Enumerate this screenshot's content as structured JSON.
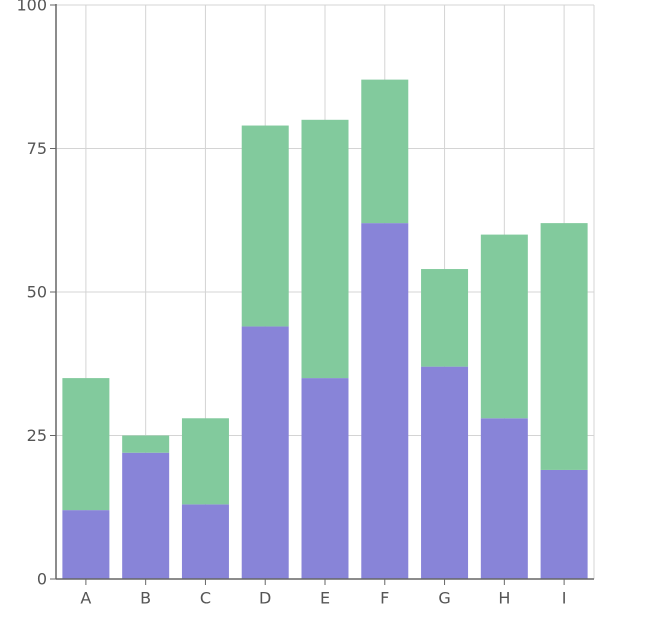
{
  "chart_data": {
    "type": "bar",
    "stacked": true,
    "title": "",
    "xlabel": "",
    "ylabel": "",
    "categories": [
      "A",
      "B",
      "C",
      "D",
      "E",
      "F",
      "G",
      "H",
      "I"
    ],
    "series": [
      {
        "values": [
          12,
          22,
          13,
          44,
          35,
          62,
          37,
          28,
          19
        ],
        "color": "#8884d8"
      },
      {
        "values": [
          23,
          3,
          15,
          35,
          45,
          25,
          17,
          32,
          43
        ],
        "color": "#82ca9d"
      }
    ],
    "ylim": [
      0,
      100
    ],
    "yticks": [
      0,
      25,
      50,
      75,
      100
    ],
    "grid": true,
    "legend": "none"
  }
}
